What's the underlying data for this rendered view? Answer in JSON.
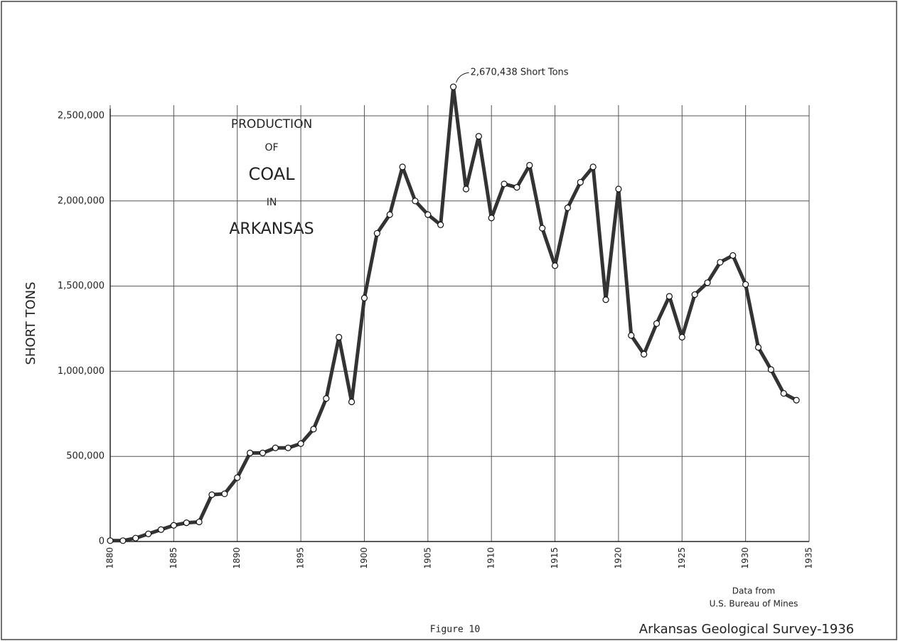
{
  "chart_data": {
    "type": "line",
    "title_lines": [
      "PRODUCTION",
      "OF",
      "COAL",
      "IN",
      "ARKANSAS"
    ],
    "y_label": "SHORT TONS",
    "annotation": "2,670,438 Short Tons",
    "source_lines": [
      "Data from",
      "U.S. Bureau of Mines"
    ],
    "figure_label": "Figure 10",
    "credit": "Arkansas Geological Survey-1936",
    "x": [
      1880,
      1881,
      1882,
      1883,
      1884,
      1885,
      1886,
      1887,
      1888,
      1889,
      1890,
      1891,
      1892,
      1893,
      1894,
      1895,
      1896,
      1897,
      1898,
      1899,
      1900,
      1901,
      1902,
      1903,
      1904,
      1905,
      1906,
      1907,
      1908,
      1909,
      1910,
      1911,
      1912,
      1913,
      1914,
      1915,
      1916,
      1917,
      1918,
      1919,
      1920,
      1921,
      1922,
      1923,
      1924,
      1925,
      1926,
      1927,
      1928,
      1929,
      1930,
      1931,
      1932,
      1933,
      1934
    ],
    "series": [
      {
        "name": "Production",
        "color": "#333333",
        "values": [
          5000,
          5000,
          20000,
          45000,
          70000,
          95000,
          110000,
          115000,
          275000,
          280000,
          375000,
          520000,
          520000,
          550000,
          550000,
          575000,
          660000,
          840000,
          1200000,
          820000,
          1430000,
          1810000,
          1920000,
          2200000,
          2000000,
          1920000,
          1860000,
          2670438,
          2070000,
          2380000,
          1900000,
          2100000,
          2080000,
          2210000,
          1840000,
          1620000,
          1960000,
          2110000,
          2200000,
          1420000,
          2070000,
          1210000,
          1100000,
          1280000,
          1440000,
          1200000,
          1450000,
          1520000,
          1640000,
          1680000,
          1510000,
          1140000,
          1010000,
          870000,
          830000
        ]
      }
    ],
    "xlim": [
      1880,
      1935
    ],
    "xticks": [
      1880,
      1885,
      1890,
      1895,
      1900,
      1905,
      1910,
      1915,
      1920,
      1925,
      1930,
      1935
    ],
    "ylim": [
      0,
      2500000
    ],
    "yticks": [
      0,
      {
        "value": 500000,
        "label": "500,000"
      },
      {
        "value": 1000000,
        "label": "1,000,000"
      },
      {
        "value": 1500000,
        "label": "1,500,000"
      },
      {
        "value": 2000000,
        "label": "2,000,000"
      },
      {
        "value": 2500000,
        "label": "2,500,000"
      }
    ],
    "grid": true
  }
}
